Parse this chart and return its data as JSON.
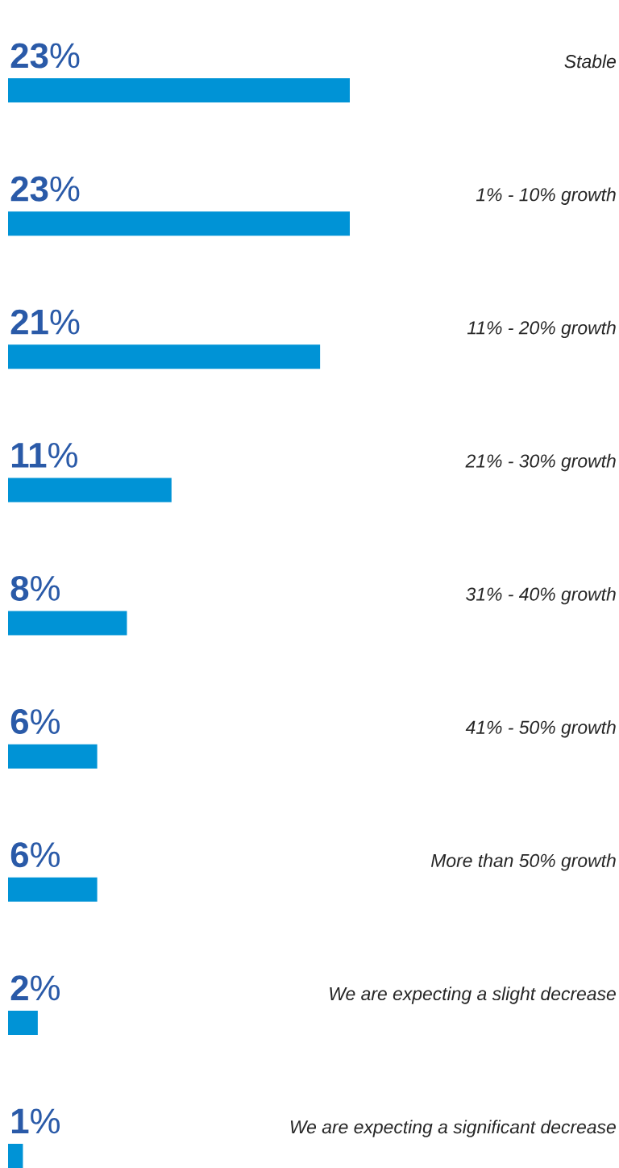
{
  "chart_data": {
    "type": "bar",
    "orientation": "horizontal",
    "categories": [
      "Stable",
      "1% - 10% growth",
      "11% - 20% growth",
      "21% - 30% growth",
      "31% - 40% growth",
      "41% - 50% growth",
      "More than 50% growth",
      "We are expecting a slight decrease",
      "We are expecting a significant decrease"
    ],
    "values": [
      23,
      23,
      21,
      11,
      8,
      6,
      6,
      2,
      1
    ],
    "value_labels": [
      "**23**%",
      "**23**%",
      "**21**%",
      "**11**%",
      "**8**%",
      "**6**%",
      "**6**%",
      "**2**%",
      "**1**%"
    ],
    "color": "#0093d6"
  }
}
